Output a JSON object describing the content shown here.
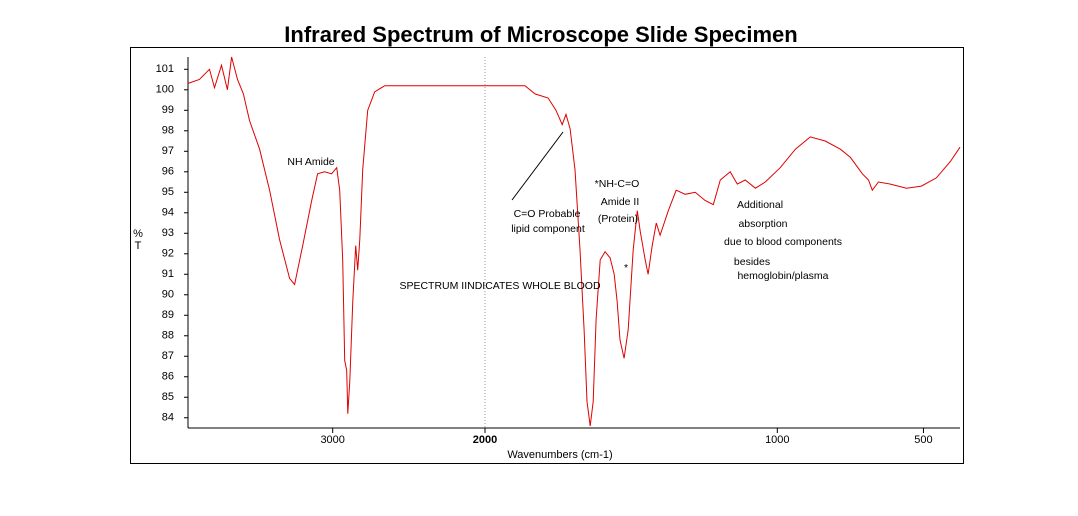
{
  "chart_data": {
    "type": "line",
    "title": "Infrared Spectrum of Microscope Slide Specimen",
    "x_label": "Wavenumbers (cm-1)",
    "y_label": [
      "%",
      "T"
    ],
    "xlim": [
      3950,
      375
    ],
    "x_break": 2000,
    "xticks": [
      3000,
      2000,
      1000,
      500
    ],
    "ylim": [
      83.5,
      101.6
    ],
    "yticks": [
      84,
      85,
      86,
      87,
      88,
      89,
      90,
      91,
      92,
      93,
      94,
      95,
      96,
      97,
      98,
      99,
      100,
      101
    ],
    "color": "#e00000",
    "x": [
      3954,
      3875,
      3809,
      3776,
      3730,
      3691,
      3664,
      3625,
      3586,
      3546,
      3480,
      3414,
      3349,
      3283,
      3250,
      3197,
      3138,
      3099,
      3053,
      3007,
      2974,
      2954,
      2934,
      2921,
      2908,
      2901,
      2888,
      2868,
      2849,
      2836,
      2822,
      2803,
      2770,
      2724,
      2658,
      2428,
      2000,
      1863,
      1829,
      1784,
      1757,
      1736,
      1723,
      1709,
      1692,
      1675,
      1661,
      1651,
      1640,
      1630,
      1620,
      1606,
      1589,
      1572,
      1558,
      1548,
      1538,
      1524,
      1510,
      1493,
      1479,
      1469,
      1452,
      1442,
      1428,
      1414,
      1401,
      1373,
      1346,
      1315,
      1281,
      1247,
      1219,
      1195,
      1161,
      1137,
      1110,
      1075,
      1041,
      990,
      938,
      887,
      836,
      784,
      750,
      709,
      688,
      675,
      654,
      613,
      558,
      507,
      456,
      408,
      375
    ],
    "values": [
      100.3,
      100.5,
      101.0,
      100.1,
      101.2,
      100.0,
      101.6,
      100.5,
      99.8,
      98.5,
      97.1,
      95.1,
      92.7,
      90.8,
      90.5,
      92.4,
      94.6,
      95.9,
      96.0,
      95.9,
      96.2,
      95.1,
      91.7,
      86.8,
      86.3,
      84.2,
      85.8,
      89.7,
      92.4,
      91.2,
      92.7,
      96.1,
      99.0,
      99.9,
      100.2,
      100.2,
      100.2,
      100.2,
      99.8,
      99.6,
      99.0,
      98.3,
      98.8,
      98.1,
      96.1,
      92.2,
      88.3,
      84.8,
      83.6,
      84.8,
      88.8,
      91.7,
      92.1,
      91.8,
      91.0,
      89.7,
      87.8,
      86.9,
      88.3,
      92.2,
      94.1,
      93.1,
      91.7,
      91.0,
      92.4,
      93.5,
      92.9,
      94.1,
      95.1,
      94.9,
      95.0,
      94.6,
      94.4,
      95.6,
      96.0,
      95.4,
      95.6,
      95.2,
      95.5,
      96.2,
      97.1,
      97.7,
      97.5,
      97.1,
      96.7,
      95.9,
      95.6,
      95.1,
      95.5,
      95.4,
      95.2,
      95.3,
      95.7,
      96.5,
      97.2
    ],
    "annotations": [
      "NH Amide",
      "C=O Probable",
      "lipid component",
      "*NH-C=O",
      "Amide II",
      "(Protein)",
      "*",
      "Additional",
      "absorption",
      "due to blood components",
      "besides",
      "hemoglobin/plasma",
      "SPECTRUM IINDICATES WHOLE BLOOD"
    ]
  }
}
